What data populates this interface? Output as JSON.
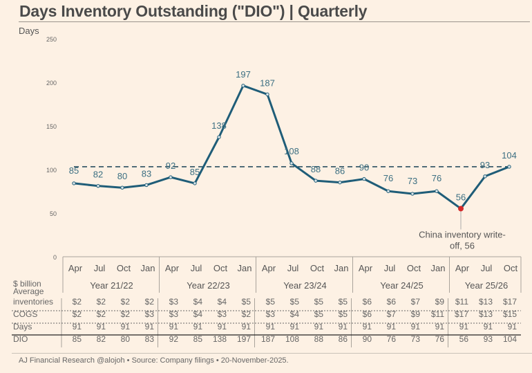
{
  "title": "Days Inventory Outstanding (\"DIO\") | Quarterly",
  "footer": "AJ Financial Research @alojoh • Source: Company filings • 20-November-2025.",
  "colors": {
    "background": "#fdf1e4",
    "line": "#1f5d78",
    "data_label": "#3c6f82",
    "highlight_marker": "#d42a2a",
    "average_line": "#2a4f60"
  },
  "chart_data": {
    "type": "line",
    "title": "Days Inventory Outstanding (\"DIO\") | Quarterly",
    "ylabel": "Days",
    "xlabel": "",
    "ylim": [
      0,
      250
    ],
    "yticks": [
      0,
      50,
      100,
      150,
      200,
      250
    ],
    "grid": false,
    "categories": [
      "Apr",
      "Jul",
      "Oct",
      "Jan",
      "Apr",
      "Jul",
      "Oct",
      "Jan",
      "Apr",
      "Jul",
      "Oct",
      "Jan",
      "Apr",
      "Jul",
      "Oct",
      "Jan",
      "Apr",
      "Jul",
      "Oct"
    ],
    "fiscal_years": [
      {
        "label": "Year 21/22",
        "quarters": 4
      },
      {
        "label": "Year 22/23",
        "quarters": 4
      },
      {
        "label": "Year 23/24",
        "quarters": 4
      },
      {
        "label": "Year 24/25",
        "quarters": 4
      },
      {
        "label": "Year 25/26",
        "quarters": 3
      }
    ],
    "series": [
      {
        "name": "DIO",
        "values": [
          85,
          82,
          80,
          83,
          92,
          85,
          138,
          197,
          187,
          108,
          88,
          86,
          90,
          76,
          73,
          76,
          56,
          93,
          104
        ]
      }
    ],
    "average_line": {
      "value": 104,
      "style": "dashed"
    },
    "annotation": {
      "index": 16,
      "text_lines": [
        "China inventory write-",
        "off, 56"
      ]
    },
    "table": {
      "unit_label": "$ billion",
      "rows": [
        {
          "label_lines": [
            "Average",
            "inventories"
          ],
          "values": [
            "$2",
            "$2",
            "$2",
            "$2",
            "$3",
            "$4",
            "$4",
            "$5",
            "$5",
            "$5",
            "$5",
            "$5",
            "$6",
            "$6",
            "$7",
            "$9",
            "$11",
            "$13",
            "$17"
          ]
        },
        {
          "label_lines": [
            "COGS"
          ],
          "values": [
            "$2",
            "$2",
            "$2",
            "$3",
            "$3",
            "$4",
            "$3",
            "$2",
            "$3",
            "$4",
            "$5",
            "$5",
            "$6",
            "$7",
            "$9",
            "$11",
            "$17",
            "$13",
            "$15"
          ]
        },
        {
          "label_lines": [
            "Days"
          ],
          "values": [
            "91",
            "91",
            "91",
            "91",
            "91",
            "91",
            "91",
            "91",
            "91",
            "91",
            "91",
            "91",
            "91",
            "91",
            "91",
            "91",
            "91",
            "91",
            "91"
          ]
        },
        {
          "label_lines": [
            "DIO"
          ],
          "values": [
            "85",
            "82",
            "80",
            "83",
            "92",
            "85",
            "138",
            "197",
            "187",
            "108",
            "88",
            "86",
            "90",
            "76",
            "73",
            "76",
            "56",
            "93",
            "104"
          ]
        }
      ]
    }
  }
}
